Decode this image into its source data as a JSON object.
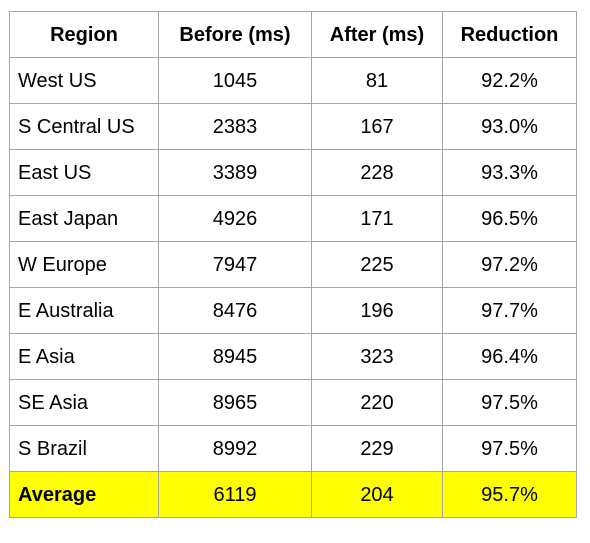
{
  "table": {
    "headers": [
      "Region",
      "Before (ms)",
      "After (ms)",
      "Reduction"
    ],
    "rows": [
      [
        "West US",
        "1045",
        "81",
        "92.2%"
      ],
      [
        "S Central US",
        "2383",
        "167",
        "93.0%"
      ],
      [
        "East US",
        "3389",
        "228",
        "93.3%"
      ],
      [
        "East Japan",
        "4926",
        "171",
        "96.5%"
      ],
      [
        "W Europe",
        "7947",
        "225",
        "97.2%"
      ],
      [
        "E Australia",
        "8476",
        "196",
        "97.7%"
      ],
      [
        "E Asia",
        "8945",
        "323",
        "96.4%"
      ],
      [
        "SE Asia",
        "8965",
        "220",
        "97.5%"
      ],
      [
        "S Brazil",
        "8992",
        "229",
        "97.5%"
      ]
    ],
    "average": [
      "Average",
      "6119",
      "204",
      "95.7%"
    ]
  },
  "colors": {
    "average_highlight": "#ffff00",
    "border": "#a6a6a6"
  }
}
